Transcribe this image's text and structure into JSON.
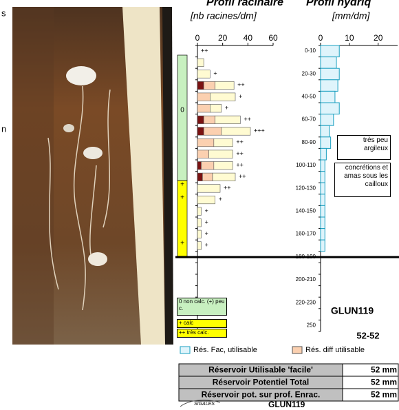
{
  "margin_text": [
    "s",
    "n"
  ],
  "chart_data": [
    {
      "type": "stacked-barh",
      "title": "Profil racinaire",
      "subtitle": "[nb racines/dm]",
      "xlim": [
        0,
        60
      ],
      "xticks": [
        0,
        20,
        40,
        60
      ],
      "series": [
        {
          "color": "#7a1212",
          "values": [
            0,
            0,
            0,
            5,
            0,
            0,
            5,
            5,
            0,
            0,
            3,
            4,
            0,
            0,
            0,
            0,
            0,
            0
          ]
        },
        {
          "color": "#fbd0b0",
          "values": [
            0,
            0,
            0,
            9,
            10,
            10,
            9,
            14,
            13,
            9,
            10,
            8,
            0,
            0,
            0,
            0,
            0,
            0
          ]
        },
        {
          "color": "#fffbd2",
          "values": [
            0,
            5,
            10,
            15,
            20,
            9,
            20,
            23,
            15,
            19,
            15,
            18,
            18,
            14,
            3,
            3,
            3,
            3
          ]
        }
      ],
      "density_labels": [
        "++",
        null,
        "+",
        "++",
        "+",
        "+",
        "++",
        "+++",
        "++",
        "++",
        "++",
        "++",
        "++",
        "+",
        "+",
        "+",
        "+",
        "+"
      ]
    },
    {
      "type": "barh",
      "title": "Profil hydriq",
      "subtitle": "[mm/dm]",
      "xlim": [
        0,
        27
      ],
      "xticks": [
        0,
        10,
        20
      ],
      "categories": [
        "0-10",
        null,
        "20-30",
        null,
        "40-50",
        null,
        "60-70",
        null,
        "80-90",
        null,
        "100-110",
        null,
        "120-130",
        null,
        "140-150",
        null,
        "160-170",
        null,
        "180-190",
        null,
        "200-210",
        null,
        "220-230",
        null,
        "250"
      ],
      "series": [
        {
          "name": "Rés. Fac, utilisable",
          "color": "#dff4fb",
          "values": [
            6.5,
            5.5,
            6.5,
            6,
            5,
            6.5,
            4.5,
            3,
            3.5,
            2,
            1.5,
            1.5,
            1.5,
            1.5,
            1.5,
            1.5,
            1.5,
            1.5,
            null,
            null,
            null,
            null,
            null,
            null,
            null
          ]
        }
      ],
      "limit_depth": 185,
      "notes": [
        "très peu argileux",
        "concrétions et amas sous les cailloux"
      ],
      "annotations": [
        "GLUN119",
        "52-52"
      ]
    }
  ],
  "calc_column": {
    "zones": [
      {
        "color": "#c8f0c0",
        "labels": [
          "0"
        ]
      },
      {
        "color": "#ffff00",
        "labels": [
          "+",
          "+",
          "+"
        ]
      }
    ],
    "legend": [
      {
        "color": "#c8f0c0",
        "text": "0 non calc. (+) peu c."
      },
      {
        "color": "#ffff00",
        "text": "+ calc"
      },
      {
        "color": "#ffff00",
        "text": "++ très calc."
      }
    ]
  },
  "legend": [
    {
      "label": "Rés. Fac, utilisable",
      "color": "#dff4fb"
    },
    {
      "label": "Rés. diff utilisable",
      "color": "#fbd0b0"
    }
  ],
  "table": {
    "rows": [
      [
        "Réservoir Utilisable 'facile'",
        "52 mm"
      ],
      [
        "Réservoir Potentiel Total",
        "52 mm"
      ],
      [
        "Réservoir pot. sur prof. Enrac.",
        "52 mm"
      ]
    ]
  },
  "footer": {
    "logo": "SIGALES",
    "code": "GLUN119"
  }
}
